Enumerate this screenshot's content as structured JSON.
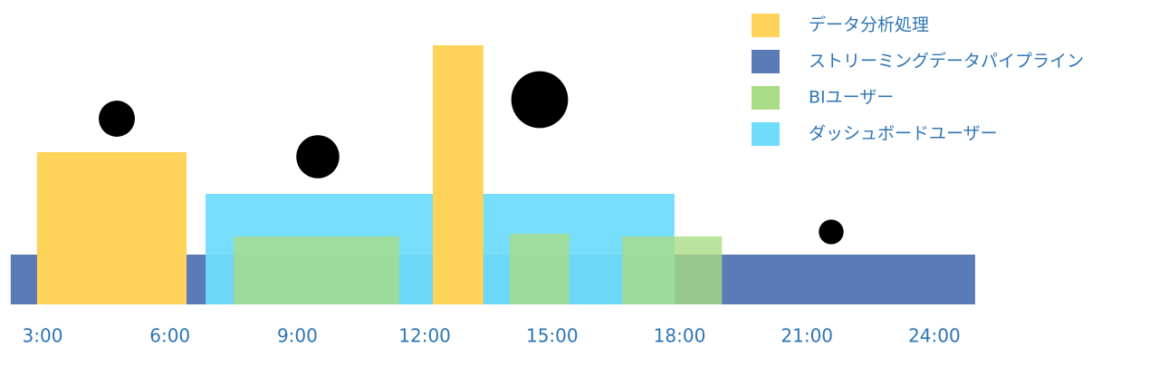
{
  "chart_data": {
    "type": "timeline",
    "xlim": [
      2,
      26
    ],
    "ylim": [
      0,
      300
    ],
    "xticks": [
      {
        "value": 3,
        "label": "3:00"
      },
      {
        "value": 6,
        "label": "6:00"
      },
      {
        "value": 9,
        "label": "9:00"
      },
      {
        "value": 12,
        "label": "12:00"
      },
      {
        "value": 15,
        "label": "15:00"
      },
      {
        "value": 18,
        "label": "18:00"
      },
      {
        "value": 21,
        "label": "21:00"
      },
      {
        "value": 24,
        "label": "24:00"
      }
    ],
    "series": [
      {
        "name": "ストリーミングデータパイプライン",
        "color": "#5b7bb6",
        "opacity": 1,
        "bars": [
          {
            "start": 2.25,
            "end": 24.96,
            "value": 55
          }
        ]
      },
      {
        "name": "ダッシュボードユーザー",
        "color": "#6fdcfb",
        "opacity": 0.95,
        "bars": [
          {
            "start": 6.84,
            "end": 17.88,
            "value": 122
          }
        ]
      },
      {
        "name": "BIユーザー",
        "color": "#a9dc86",
        "opacity": 0.8,
        "bars": [
          {
            "start": 7.5,
            "end": 11.4,
            "value": 75
          },
          {
            "start": 14.0,
            "end": 15.4,
            "value": 78
          },
          {
            "start": 16.65,
            "end": 19.0,
            "value": 75
          }
        ]
      },
      {
        "name": "データ分析処理",
        "color": "#fdd35a",
        "opacity": 1,
        "bars": [
          {
            "start": 2.87,
            "end": 6.39,
            "value": 168
          },
          {
            "start": 12.19,
            "end": 13.38,
            "value": 286
          }
        ]
      }
    ],
    "legend_order": [
      3,
      0,
      2,
      1
    ]
  }
}
